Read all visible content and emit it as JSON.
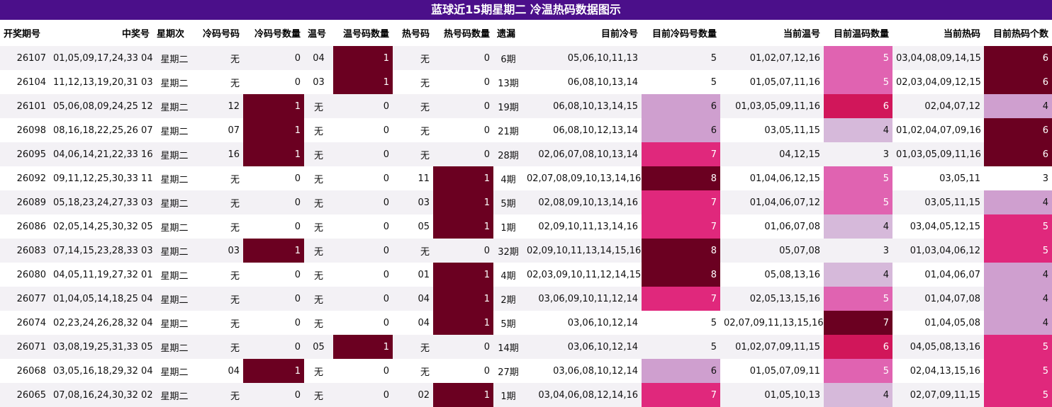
{
  "title": "蓝球近15期星期二 冷温热码数据图示",
  "headers": [
    "开奖期号",
    "中奖号",
    "星期次",
    "冷码号码",
    "冷码号数量",
    "温号",
    "温号码数量",
    "热号码",
    "热号码数量",
    "遗漏",
    "目前冷号",
    "目前冷码号数量",
    "当前温号",
    "目前温码数量",
    "当前热码",
    "目前热码个数"
  ],
  "rows": [
    {
      "id": "26107",
      "nums": "01,05,09,17,24,33 04",
      "day": "星期二",
      "cold": "无",
      "cold_n": "0",
      "warm": "04",
      "warm_n": "1",
      "hot": "无",
      "hot_n": "0",
      "miss": "6期",
      "cur_cold": "05,06,10,11,13",
      "cur_cold_n": "5",
      "cur_warm": "01,02,07,12,16",
      "cur_warm_n": "5",
      "cur_hot": "03,04,08,09,14,15",
      "cur_hot_n": "6"
    },
    {
      "id": "26104",
      "nums": "11,12,13,19,20,31 03",
      "day": "星期二",
      "cold": "无",
      "cold_n": "0",
      "warm": "03",
      "warm_n": "1",
      "hot": "无",
      "hot_n": "0",
      "miss": "13期",
      "cur_cold": "06,08,10,13,14",
      "cur_cold_n": "5",
      "cur_warm": "01,05,07,11,16",
      "cur_warm_n": "5",
      "cur_hot": "02,03,04,09,12,15",
      "cur_hot_n": "6"
    },
    {
      "id": "26101",
      "nums": "05,06,08,09,24,25 12",
      "day": "星期二",
      "cold": "12",
      "cold_n": "1",
      "warm": "无",
      "warm_n": "0",
      "hot": "无",
      "hot_n": "0",
      "miss": "19期",
      "cur_cold": "06,08,10,13,14,15",
      "cur_cold_n": "6",
      "cur_warm": "01,03,05,09,11,16",
      "cur_warm_n": "6",
      "cur_hot": "02,04,07,12",
      "cur_hot_n": "4"
    },
    {
      "id": "26098",
      "nums": "08,16,18,22,25,26 07",
      "day": "星期二",
      "cold": "07",
      "cold_n": "1",
      "warm": "无",
      "warm_n": "0",
      "hot": "无",
      "hot_n": "0",
      "miss": "21期",
      "cur_cold": "06,08,10,12,13,14",
      "cur_cold_n": "6",
      "cur_warm": "03,05,11,15",
      "cur_warm_n": "4",
      "cur_hot": "01,02,04,07,09,16",
      "cur_hot_n": "6"
    },
    {
      "id": "26095",
      "nums": "04,06,14,21,22,33 16",
      "day": "星期二",
      "cold": "16",
      "cold_n": "1",
      "warm": "无",
      "warm_n": "0",
      "hot": "无",
      "hot_n": "0",
      "miss": "28期",
      "cur_cold": "02,06,07,08,10,13,14",
      "cur_cold_n": "7",
      "cur_warm": "04,12,15",
      "cur_warm_n": "3",
      "cur_hot": "01,03,05,09,11,16",
      "cur_hot_n": "6"
    },
    {
      "id": "26092",
      "nums": "09,11,12,25,30,33 11",
      "day": "星期二",
      "cold": "无",
      "cold_n": "0",
      "warm": "无",
      "warm_n": "0",
      "hot": "11",
      "hot_n": "1",
      "miss": "4期",
      "cur_cold": "02,07,08,09,10,13,14,16",
      "cur_cold_n": "8",
      "cur_warm": "01,04,06,12,15",
      "cur_warm_n": "5",
      "cur_hot": "03,05,11",
      "cur_hot_n": "3"
    },
    {
      "id": "26089",
      "nums": "05,18,23,24,27,33 03",
      "day": "星期二",
      "cold": "无",
      "cold_n": "0",
      "warm": "无",
      "warm_n": "0",
      "hot": "03",
      "hot_n": "1",
      "miss": "5期",
      "cur_cold": "02,08,09,10,13,14,16",
      "cur_cold_n": "7",
      "cur_warm": "01,04,06,07,12",
      "cur_warm_n": "5",
      "cur_hot": "03,05,11,15",
      "cur_hot_n": "4"
    },
    {
      "id": "26086",
      "nums": "02,05,14,25,30,32 05",
      "day": "星期二",
      "cold": "无",
      "cold_n": "0",
      "warm": "无",
      "warm_n": "0",
      "hot": "05",
      "hot_n": "1",
      "miss": "1期",
      "cur_cold": "02,09,10,11,13,14,16",
      "cur_cold_n": "7",
      "cur_warm": "01,06,07,08",
      "cur_warm_n": "4",
      "cur_hot": "03,04,05,12,15",
      "cur_hot_n": "5"
    },
    {
      "id": "26083",
      "nums": "07,14,15,23,28,33 03",
      "day": "星期二",
      "cold": "03",
      "cold_n": "1",
      "warm": "无",
      "warm_n": "0",
      "hot": "无",
      "hot_n": "0",
      "miss": "32期",
      "cur_cold": "02,09,10,11,13,14,15,16",
      "cur_cold_n": "8",
      "cur_warm": "05,07,08",
      "cur_warm_n": "3",
      "cur_hot": "01,03,04,06,12",
      "cur_hot_n": "5"
    },
    {
      "id": "26080",
      "nums": "04,05,11,19,27,32 01",
      "day": "星期二",
      "cold": "无",
      "cold_n": "0",
      "warm": "无",
      "warm_n": "0",
      "hot": "01",
      "hot_n": "1",
      "miss": "4期",
      "cur_cold": "02,03,09,10,11,12,14,15",
      "cur_cold_n": "8",
      "cur_warm": "05,08,13,16",
      "cur_warm_n": "4",
      "cur_hot": "01,04,06,07",
      "cur_hot_n": "4"
    },
    {
      "id": "26077",
      "nums": "01,04,05,14,18,25 04",
      "day": "星期二",
      "cold": "无",
      "cold_n": "0",
      "warm": "无",
      "warm_n": "0",
      "hot": "04",
      "hot_n": "1",
      "miss": "2期",
      "cur_cold": "03,06,09,10,11,12,14",
      "cur_cold_n": "7",
      "cur_warm": "02,05,13,15,16",
      "cur_warm_n": "5",
      "cur_hot": "01,04,07,08",
      "cur_hot_n": "4"
    },
    {
      "id": "26074",
      "nums": "02,23,24,26,28,32 04",
      "day": "星期二",
      "cold": "无",
      "cold_n": "0",
      "warm": "无",
      "warm_n": "0",
      "hot": "04",
      "hot_n": "1",
      "miss": "5期",
      "cur_cold": "03,06,10,12,14",
      "cur_cold_n": "5",
      "cur_warm": "02,07,09,11,13,15,16",
      "cur_warm_n": "7",
      "cur_hot": "01,04,05,08",
      "cur_hot_n": "4"
    },
    {
      "id": "26071",
      "nums": "03,08,19,25,31,33 05",
      "day": "星期二",
      "cold": "无",
      "cold_n": "0",
      "warm": "05",
      "warm_n": "1",
      "hot": "无",
      "hot_n": "0",
      "miss": "14期",
      "cur_cold": "03,06,10,12,14",
      "cur_cold_n": "5",
      "cur_warm": "01,02,07,09,11,15",
      "cur_warm_n": "6",
      "cur_hot": "04,05,08,13,16",
      "cur_hot_n": "5"
    },
    {
      "id": "26068",
      "nums": "03,05,16,18,29,32 04",
      "day": "星期二",
      "cold": "04",
      "cold_n": "1",
      "warm": "无",
      "warm_n": "0",
      "hot": "无",
      "hot_n": "0",
      "miss": "27期",
      "cur_cold": "03,06,08,10,12,14",
      "cur_cold_n": "6",
      "cur_warm": "01,05,07,09,11",
      "cur_warm_n": "5",
      "cur_hot": "02,04,13,15,16",
      "cur_hot_n": "5"
    },
    {
      "id": "26065",
      "nums": "07,08,16,24,30,32 02",
      "day": "星期二",
      "cold": "无",
      "cold_n": "0",
      "warm": "无",
      "warm_n": "0",
      "hot": "02",
      "hot_n": "1",
      "miss": "1期",
      "cur_cold": "03,04,06,08,12,14,16",
      "cur_cold_n": "7",
      "cur_warm": "01,05,10,13",
      "cur_warm_n": "4",
      "cur_hot": "02,07,09,11,15",
      "cur_hot_n": "5"
    }
  ],
  "colors": {
    "title_bg": "#4b0f8a",
    "dark": "#6b0021",
    "hot_pink": "#e0287c",
    "crimson": "#d1165a",
    "orchid": "#e063b1",
    "lilac": "#cf9fcf",
    "pale_lilac": "#d6b9da"
  }
}
